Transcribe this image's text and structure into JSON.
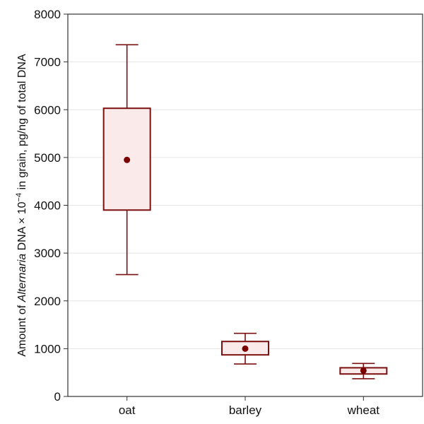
{
  "chart_data": {
    "type": "box",
    "categories": [
      "oat",
      "barley",
      "wheat"
    ],
    "boxes": [
      {
        "category": "oat",
        "whisker_low": 2550,
        "q1": 3900,
        "mean": 4950,
        "q3": 6030,
        "whisker_high": 7360
      },
      {
        "category": "barley",
        "whisker_low": 680,
        "q1": 870,
        "mean": 1000,
        "q3": 1150,
        "whisker_high": 1320
      },
      {
        "category": "wheat",
        "whisker_low": 370,
        "q1": 470,
        "mean": 540,
        "q3": 600,
        "whisker_high": 690
      }
    ],
    "ylim": [
      0,
      8000
    ],
    "yticks": [
      0,
      1000,
      2000,
      3000,
      4000,
      5000,
      6000,
      7000,
      8000
    ],
    "ylabel": {
      "prefix": "Amount of ",
      "italic": "Alternaria",
      "middle": " DNA × 10",
      "superscript": "−4",
      "suffix": " in grain, pg/ng of total DNA"
    },
    "xlabel": "",
    "title": "",
    "grid": "horizontal",
    "colors": {
      "box_stroke": "#7a1010",
      "box_fill": "#fbeaea",
      "mean_marker": "#7a0000",
      "grid": "#e4e4e4",
      "axis": "#333333"
    }
  }
}
